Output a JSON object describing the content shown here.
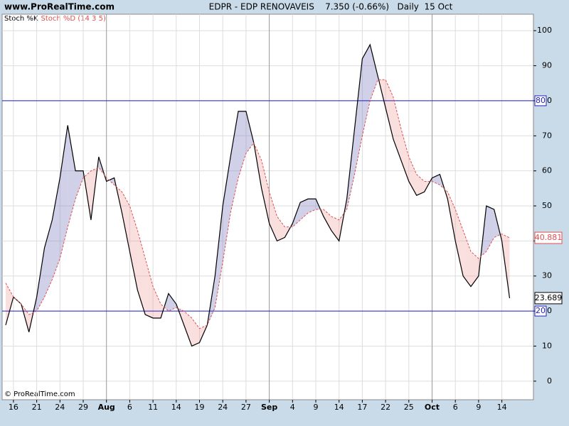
{
  "chart_data": {
    "type": "line",
    "watermark": "www.ProRealTime.com",
    "title": "EDPR - EDP RENOVAVEIS    7.350 (-0.66%)   Daily  15 Oct",
    "copyright": "© ProRealTime.com",
    "categories": [
      null,
      "16",
      null,
      null,
      "21",
      null,
      null,
      "24",
      null,
      null,
      "29",
      null,
      null,
      "Aug",
      null,
      null,
      "6",
      null,
      null,
      "11",
      null,
      null,
      "14",
      null,
      null,
      "19",
      null,
      null,
      "24",
      null,
      null,
      "27",
      null,
      null,
      "Sep",
      null,
      null,
      "4",
      null,
      null,
      "9",
      null,
      null,
      "14",
      null,
      null,
      "17",
      null,
      null,
      "22",
      null,
      null,
      "25",
      null,
      null,
      "Oct",
      null,
      null,
      "6",
      null,
      null,
      "9",
      null,
      null,
      "14",
      null
    ],
    "series": [
      {
        "name": "Stoch %K",
        "color": "#000000",
        "values": [
          16,
          24,
          22,
          14,
          24,
          38,
          46,
          58,
          73,
          60,
          60,
          46,
          64,
          57,
          58,
          48,
          37,
          26,
          19,
          18,
          18,
          25,
          22,
          16,
          10,
          11,
          16,
          30,
          50,
          64,
          77,
          77,
          68,
          55,
          45,
          40,
          41,
          45,
          51,
          52,
          52,
          47,
          43,
          40,
          52,
          72,
          92,
          96,
          87,
          78,
          69,
          63,
          57,
          53,
          54,
          58,
          59,
          52,
          40,
          30,
          27,
          30,
          50,
          49,
          40,
          23.689
        ]
      },
      {
        "name": "Stoch %D (14 3 5)",
        "color": "#e05050",
        "values": [
          28,
          24,
          22,
          19,
          20,
          24,
          29,
          35,
          44,
          52,
          58,
          60,
          61,
          58,
          56,
          54,
          50,
          43,
          35,
          27,
          22,
          20,
          21,
          20,
          18,
          15,
          16,
          21,
          34,
          48,
          58,
          65,
          68,
          63,
          54,
          47,
          44,
          44,
          46,
          48,
          49,
          49,
          47,
          46,
          49,
          59,
          70,
          80,
          86,
          86,
          81,
          72,
          64,
          59,
          57,
          57,
          56,
          54,
          49,
          43,
          37,
          35,
          37,
          41,
          42,
          40.881
        ]
      }
    ],
    "ylim": [
      -5.3,
      104.7
    ],
    "yticks": [
      0,
      10,
      20,
      30,
      40,
      50,
      60,
      70,
      80,
      90,
      100
    ],
    "hlines": [
      80,
      20
    ],
    "grid": true
  }
}
